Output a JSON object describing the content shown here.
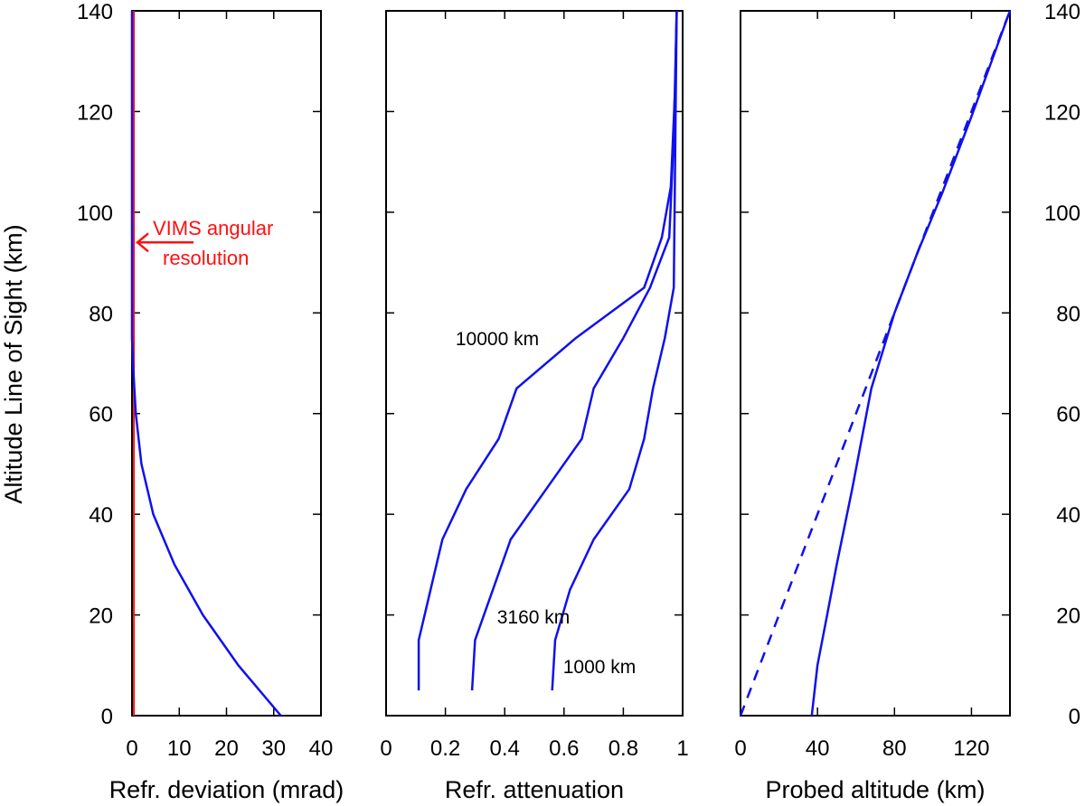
{
  "colors": {
    "series": "#1010ee",
    "annotation": "#ff1010",
    "axis": "#000000"
  },
  "ylabel": "Altitude Line of Sight (km)",
  "chart_data": [
    {
      "type": "line",
      "xlabel": "Refr. deviation (mrad)",
      "xlim": [
        0,
        40
      ],
      "ylim": [
        0,
        140
      ],
      "xticks": [
        0,
        10,
        20,
        30,
        40
      ],
      "yticks": [
        0,
        20,
        40,
        60,
        80,
        100,
        120,
        140
      ],
      "series": [
        {
          "x": [
            31.5,
            22.5,
            15.0,
            9.0,
            4.5,
            2.0,
            0.8,
            0.2,
            0.0,
            0.0
          ],
          "y": [
            0,
            10,
            20,
            30,
            40,
            50,
            60,
            70,
            75,
            140
          ]
        }
      ],
      "reference_line": {
        "x": 0.4
      },
      "annotation": {
        "text_lines": [
          "VIMS angular",
          "resolution"
        ],
        "arrow_y": 94
      }
    },
    {
      "type": "line",
      "xlabel": "Refr. attenuation",
      "xlim": [
        0,
        1
      ],
      "ylim": [
        0,
        140
      ],
      "xticks": [
        0,
        0.2,
        0.4,
        0.6,
        0.8,
        1
      ],
      "xtick_labels": [
        "0",
        "0.2",
        "0.4",
        "0.6",
        "0.8",
        "1"
      ],
      "series": [
        {
          "name": "10000 km",
          "x": [
            0.11,
            0.11,
            0.15,
            0.19,
            0.27,
            0.38,
            0.44,
            0.64,
            0.87,
            0.93,
            0.96,
            0.975,
            0.98
          ],
          "y": [
            5,
            15,
            25,
            35,
            45,
            55,
            65,
            75,
            85,
            95,
            105,
            125,
            140
          ]
        },
        {
          "name": "3160 km",
          "x": [
            0.29,
            0.3,
            0.36,
            0.42,
            0.54,
            0.66,
            0.7,
            0.8,
            0.89,
            0.955,
            0.97,
            0.98
          ],
          "y": [
            5,
            15,
            25,
            35,
            45,
            55,
            65,
            75,
            85,
            95,
            115,
            140
          ]
        },
        {
          "name": "1000 km",
          "x": [
            0.56,
            0.57,
            0.62,
            0.7,
            0.82,
            0.87,
            0.9,
            0.94,
            0.97,
            0.98
          ],
          "y": [
            5,
            15,
            25,
            35,
            45,
            55,
            65,
            75,
            85,
            140
          ]
        }
      ]
    },
    {
      "type": "line",
      "xlabel": "Probed altitude (km)",
      "xlim": [
        0,
        140
      ],
      "ylim": [
        0,
        140
      ],
      "xticks": [
        0,
        40,
        80,
        120
      ],
      "yticks": [
        0,
        20,
        40,
        60,
        80,
        100,
        120,
        140
      ],
      "series": [
        {
          "style": "solid",
          "x": [
            37,
            40,
            45,
            50,
            58,
            68,
            80,
            92,
            105,
            120,
            140
          ],
          "y": [
            0,
            10,
            20,
            30,
            45,
            65,
            80,
            92,
            104,
            119,
            140
          ]
        },
        {
          "style": "dashed",
          "x": [
            0,
            140
          ],
          "y": [
            0,
            140
          ]
        }
      ]
    }
  ]
}
